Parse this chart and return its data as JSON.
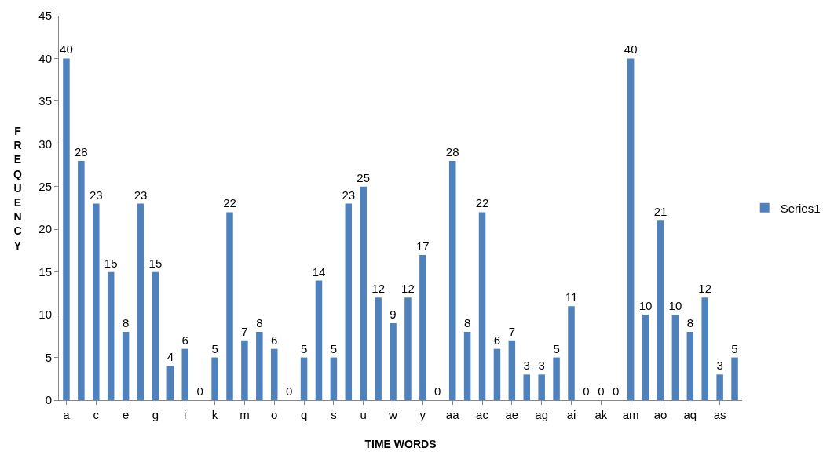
{
  "chart_data": {
    "type": "bar",
    "xlabel": "TIME WORDS",
    "ylabel": "FREQUENCY",
    "categories": [
      "a",
      null,
      "c",
      null,
      "e",
      null,
      "g",
      null,
      "i",
      null,
      "k",
      null,
      "m",
      null,
      "o",
      null,
      "q",
      null,
      "s",
      null,
      "u",
      null,
      "w",
      null,
      "y",
      null,
      "aa",
      null,
      "ac",
      null,
      "ae",
      null,
      "ag",
      null,
      "ai",
      null,
      "ak",
      null,
      "am",
      null,
      "ao",
      null,
      "aq",
      null,
      "as",
      null
    ],
    "series": [
      {
        "name": "Series1",
        "color": "#4f81bd",
        "values": [
          40,
          28,
          23,
          15,
          8,
          23,
          15,
          4,
          6,
          0,
          5,
          22,
          7,
          8,
          6,
          0,
          5,
          14,
          5,
          23,
          25,
          12,
          9,
          12,
          17,
          0,
          28,
          8,
          22,
          6,
          7,
          3,
          3,
          5,
          11,
          0,
          0,
          0,
          40,
          10,
          21,
          10,
          8,
          12,
          3,
          5
        ]
      }
    ],
    "ylim": [
      0,
      45
    ],
    "yticks": [
      0,
      5,
      10,
      15,
      20,
      25,
      30,
      35,
      40,
      45
    ],
    "grid": false,
    "data_labels": true,
    "legend": "right"
  }
}
